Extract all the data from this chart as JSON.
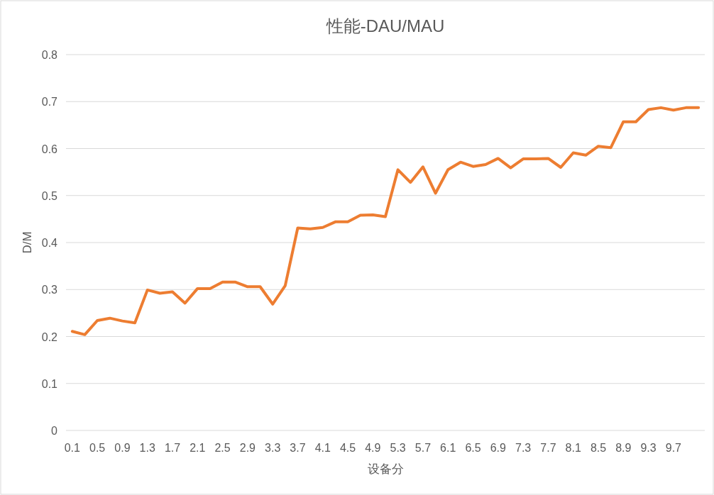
{
  "chart_data": {
    "type": "line",
    "title": "性能-DAU/MAU",
    "xlabel": "设备分",
    "ylabel": "D/M",
    "categories": [
      "0.1",
      null,
      "0.5",
      null,
      "0.9",
      null,
      "1.3",
      null,
      "1.7",
      null,
      "2.1",
      null,
      "2.5",
      null,
      "2.9",
      null,
      "3.3",
      null,
      "3.7",
      null,
      "4.1",
      null,
      "4.5",
      null,
      "4.9",
      null,
      "5.3",
      null,
      "5.7",
      null,
      "6.1",
      null,
      "6.5",
      null,
      "6.9",
      null,
      "7.3",
      null,
      "7.7",
      null,
      "8.1",
      null,
      "8.5",
      null,
      "8.9",
      null,
      "9.3",
      null,
      "9.7",
      null,
      null
    ],
    "series": [
      {
        "color": "#ed7d31",
        "values": [
          0.211,
          0.204,
          0.234,
          0.239,
          0.233,
          0.229,
          0.299,
          0.292,
          0.295,
          0.271,
          0.302,
          0.302,
          0.316,
          0.316,
          0.306,
          0.306,
          0.269,
          0.308,
          0.431,
          0.429,
          0.432,
          0.444,
          0.444,
          0.458,
          0.459,
          0.455,
          0.555,
          0.528,
          0.561,
          0.505,
          0.555,
          0.571,
          0.562,
          0.566,
          0.579,
          0.559,
          0.578,
          0.578,
          0.579,
          0.56,
          0.591,
          0.586,
          0.605,
          0.602,
          0.657,
          0.657,
          0.683,
          0.687,
          0.682,
          0.687,
          0.687
        ]
      }
    ],
    "ylim": [
      0,
      0.8
    ],
    "yticks": [
      0,
      0.1,
      0.2,
      0.3,
      0.4,
      0.5,
      0.6,
      0.7,
      0.8
    ],
    "grid": "y",
    "marker": "none",
    "line_style": "solid"
  }
}
